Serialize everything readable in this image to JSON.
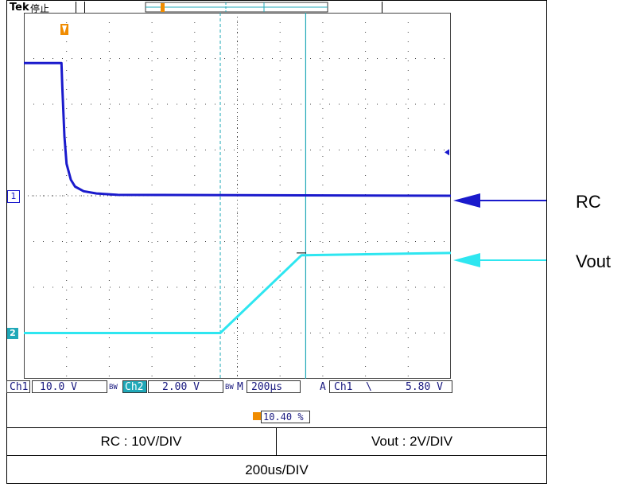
{
  "header": {
    "logo": "Tek",
    "state": "停止"
  },
  "readout": {
    "ch1_label": "Ch1",
    "ch1_scale": "10.0 V",
    "ch2_label": "Ch2",
    "ch2_scale": "2.00 V",
    "time_label": "M",
    "time_scale": "200μs",
    "trigger_mode": "A",
    "trigger_source": "Ch1",
    "trigger_slope": "\\",
    "trigger_level": "5.80 V",
    "trigger_position": "10.40 %"
  },
  "channel_markers": {
    "ch1": "1",
    "ch2": "2"
  },
  "colors": {
    "ch1": "#1a1acc",
    "ch2": "#2ee6f0",
    "grid": "#444444",
    "cursor": "#20a8b8"
  },
  "table": {
    "rc_scale": "RC : 10V/DIV",
    "vout_scale": "Vout : 2V/DIV",
    "time_scale": "200us/DIV"
  },
  "annotations": {
    "rc": "RC",
    "vout": "Vout"
  },
  "chart_data": {
    "type": "line",
    "x_unit": "div",
    "xlim": [
      0,
      10
    ],
    "ylim": [
      0,
      8
    ],
    "grid": true,
    "series": [
      {
        "name": "RC",
        "x": [
          0,
          0.88,
          0.9,
          0.95,
          1.0,
          1.1,
          1.2,
          1.4,
          1.7,
          2.2,
          10
        ],
        "y": [
          6.9,
          6.9,
          6.4,
          5.3,
          4.7,
          4.35,
          4.2,
          4.1,
          4.05,
          4.02,
          4.0
        ]
      },
      {
        "name": "Vout",
        "x": [
          0,
          4.6,
          6.5,
          10
        ],
        "y": [
          1.0,
          1.0,
          2.7,
          2.75
        ]
      }
    ]
  }
}
